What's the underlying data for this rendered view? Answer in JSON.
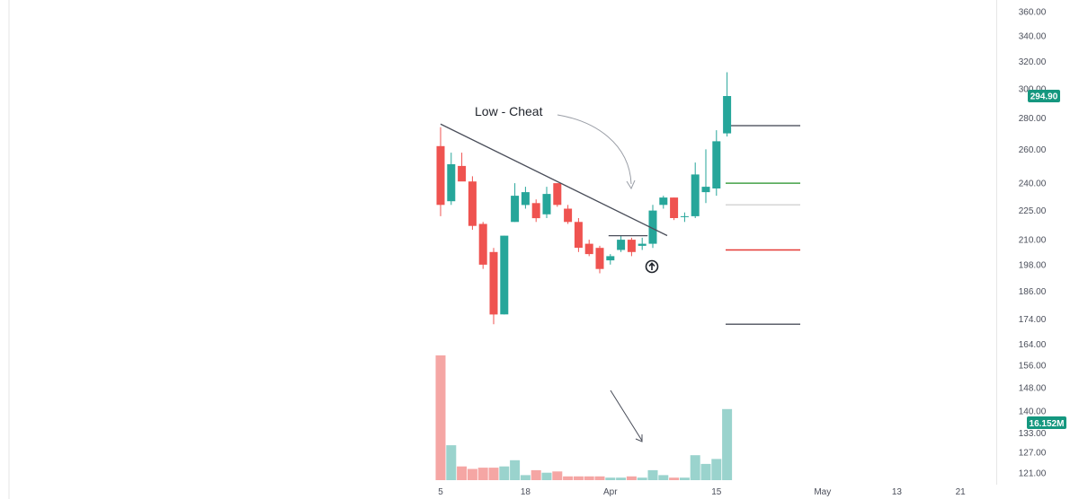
{
  "colors": {
    "up": "#26a69a",
    "down": "#ef5350",
    "volume_up": "#9ad3cd",
    "volume_down": "#f5a6a4",
    "badge": "#15977f",
    "trendline": "#4a4e5a",
    "level_dark": "#5d606b",
    "level_green": "#43a047",
    "level_gray": "#d6d6d6",
    "level_red": "#e53935"
  },
  "annotations": {
    "low_cheat": "Low - Cheat"
  },
  "chart_data": {
    "type": "candlestick",
    "y_axis": {
      "scale": "log",
      "range": [
        118,
        370
      ],
      "ticks": [
        "360.00",
        "340.00",
        "320.00",
        "300.00",
        "280.00",
        "260.00",
        "240.00",
        "225.00",
        "210.00",
        "198.00",
        "186.00",
        "174.00",
        "164.00",
        "156.00",
        "148.00",
        "140.00",
        "133.00",
        "127.00",
        "121.00"
      ]
    },
    "x_axis": {
      "ticks": [
        {
          "label": "5",
          "index": 0
        },
        {
          "label": "18",
          "index": 8
        },
        {
          "label": "Apr",
          "index": 16
        },
        {
          "label": "15",
          "index": 26
        },
        {
          "label": "May",
          "index": 36
        },
        {
          "label": "13",
          "index": 43
        },
        {
          "label": "21",
          "index": 49
        }
      ]
    },
    "candles": [
      {
        "o": 262.0,
        "h": 274.0,
        "l": 222.0,
        "c": 228.0,
        "v": 1.0
      },
      {
        "o": 230.0,
        "h": 258.0,
        "l": 228.0,
        "c": 251.0,
        "v": 0.28
      },
      {
        "o": 250.0,
        "h": 258.0,
        "l": 242.0,
        "c": 241.0,
        "v": 0.11
      },
      {
        "o": 241.0,
        "h": 244.0,
        "l": 215.0,
        "c": 217.0,
        "v": 0.09
      },
      {
        "o": 218.0,
        "h": 219.0,
        "l": 196.0,
        "c": 198.0,
        "v": 0.1
      },
      {
        "o": 204.0,
        "h": 206.0,
        "l": 172.0,
        "c": 176.0,
        "v": 0.1
      },
      {
        "o": 176.0,
        "h": 212.0,
        "l": 176.0,
        "c": 212.0,
        "v": 0.11
      },
      {
        "o": 219.0,
        "h": 240.0,
        "l": 219.0,
        "c": 233.0,
        "v": 0.16
      },
      {
        "o": 228.0,
        "h": 238.0,
        "l": 226.0,
        "c": 235.0,
        "v": 0.04
      },
      {
        "o": 229.0,
        "h": 231.0,
        "l": 219.0,
        "c": 221.0,
        "v": 0.08
      },
      {
        "o": 223.0,
        "h": 238.0,
        "l": 221.0,
        "c": 234.0,
        "v": 0.06
      },
      {
        "o": 240.0,
        "h": 240.0,
        "l": 227.0,
        "c": 228.0,
        "v": 0.07
      },
      {
        "o": 226.0,
        "h": 228.0,
        "l": 218.0,
        "c": 219.0,
        "v": 0.03
      },
      {
        "o": 219.0,
        "h": 221.0,
        "l": 204.0,
        "c": 206.0,
        "v": 0.03
      },
      {
        "o": 208.0,
        "h": 210.0,
        "l": 202.0,
        "c": 203.0,
        "v": 0.03
      },
      {
        "o": 206.0,
        "h": 207.0,
        "l": 194.0,
        "c": 196.0,
        "v": 0.03
      },
      {
        "o": 200.0,
        "h": 203.0,
        "l": 198.0,
        "c": 202.0,
        "v": 0.02
      },
      {
        "o": 205.0,
        "h": 212.0,
        "l": 204.0,
        "c": 210.0,
        "v": 0.02
      },
      {
        "o": 210.0,
        "h": 211.0,
        "l": 202.0,
        "c": 204.0,
        "v": 0.03
      },
      {
        "o": 207.0,
        "h": 211.0,
        "l": 205.0,
        "c": 208.0,
        "v": 0.02
      },
      {
        "o": 208.0,
        "h": 228.0,
        "l": 206.0,
        "c": 225.0,
        "v": 0.08
      },
      {
        "o": 228.0,
        "h": 233.0,
        "l": 226.0,
        "c": 232.0,
        "v": 0.04
      },
      {
        "o": 232.0,
        "h": 232.0,
        "l": 220.0,
        "c": 221.0,
        "v": 0.02
      },
      {
        "o": 222.0,
        "h": 224.0,
        "l": 219.0,
        "c": 222.0,
        "v": 0.02
      },
      {
        "o": 222.0,
        "h": 252.0,
        "l": 221.0,
        "c": 245.0,
        "v": 0.2
      },
      {
        "o": 235.0,
        "h": 260.0,
        "l": 229.0,
        "c": 238.0,
        "v": 0.13
      },
      {
        "o": 237.0,
        "h": 272.0,
        "l": 233.0,
        "c": 265.0,
        "v": 0.17
      },
      {
        "o": 270.0,
        "h": 312.0,
        "l": 268.0,
        "c": 294.9,
        "v": 0.57
      }
    ],
    "levels": [
      {
        "price": 275.0,
        "kind": "dark"
      },
      {
        "price": 240.0,
        "kind": "green"
      },
      {
        "price": 228.0,
        "kind": "gray"
      },
      {
        "price": 205.0,
        "kind": "red"
      },
      {
        "price": 172.0,
        "kind": "dark"
      }
    ],
    "trendline": {
      "from": {
        "index": 0,
        "price": 276.0
      },
      "to": {
        "index": 20,
        "price": 212.5
      }
    },
    "base_line": {
      "from_index": 16,
      "to_index": 19,
      "price": 212.0
    },
    "last_price_label": "294.90",
    "volume_label": "16.152M"
  }
}
